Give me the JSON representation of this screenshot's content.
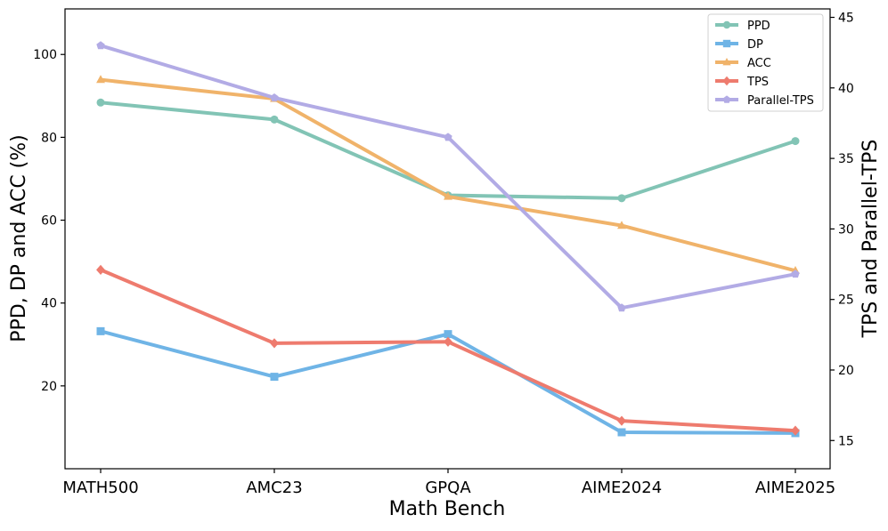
{
  "chart_data": {
    "type": "line",
    "title": "",
    "xlabel": "Math Bench",
    "ylabel_left": "PPD, DP and ACC (%)",
    "ylabel_right": "TPS and Parallel-TPS",
    "categories": [
      "MATH500",
      "AMC23",
      "GPQA",
      "AIME2024",
      "AIME2025"
    ],
    "y_left_lim": [
      0,
      111
    ],
    "y_left_ticks": [
      20,
      40,
      60,
      80,
      100
    ],
    "y_right_lim": [
      13,
      45.6
    ],
    "y_right_ticks": [
      15,
      20,
      25,
      30,
      35,
      40,
      45
    ],
    "grid": false,
    "legend_position": "top-right",
    "series": [
      {
        "name": "PPD",
        "axis": "left",
        "marker": "circle",
        "color": "#82c4b5",
        "values": [
          88.4,
          84.3,
          66.0,
          65.3,
          79.1
        ]
      },
      {
        "name": "DP",
        "axis": "left",
        "marker": "square",
        "color": "#6fb4e6",
        "values": [
          33.2,
          22.2,
          32.5,
          8.8,
          8.6
        ]
      },
      {
        "name": "ACC",
        "axis": "left",
        "marker": "triangle",
        "color": "#f0b36a",
        "values": [
          93.9,
          89.3,
          65.7,
          58.7,
          47.8
        ]
      },
      {
        "name": "TPS",
        "axis": "right",
        "marker": "diamond",
        "color": "#ee7b6e",
        "values": [
          27.1,
          21.9,
          22.0,
          16.4,
          15.7
        ]
      },
      {
        "name": "Parallel-TPS",
        "axis": "right",
        "marker": "pentagon",
        "color": "#b2abe5",
        "values": [
          43.0,
          39.3,
          36.5,
          24.4,
          26.8
        ]
      }
    ]
  }
}
